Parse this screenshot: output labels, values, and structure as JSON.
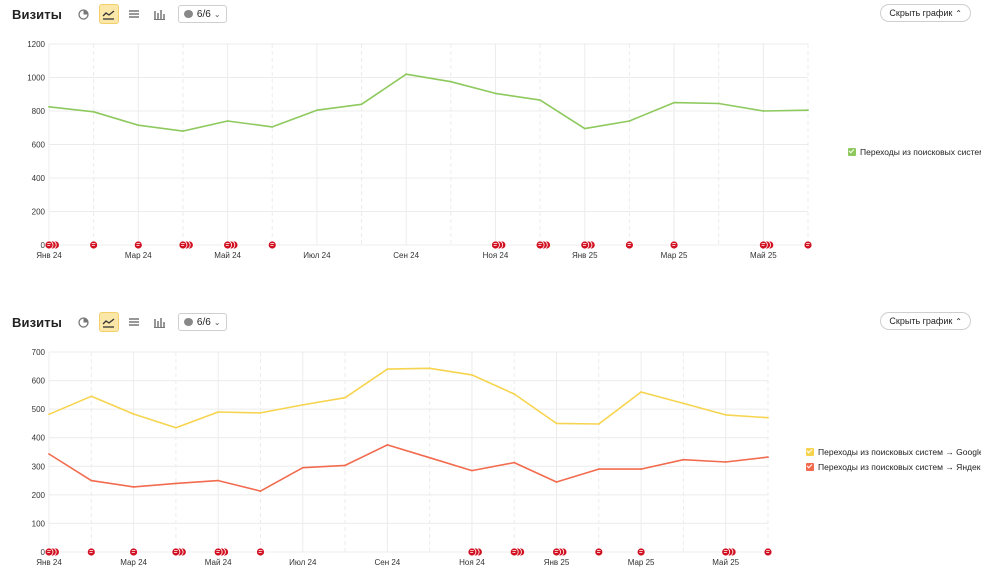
{
  "colors": {
    "green": "#8dc95d",
    "yellow": "#f7d44f",
    "orange": "#f26b4e",
    "marker": "#d11122",
    "grid": "#ececec",
    "active_button": "#fbe7a8"
  },
  "panels": [
    {
      "title": "Визиты",
      "annotations_label": "6/6",
      "hide_label": "Скрыть график",
      "chart_data": {
        "type": "line",
        "x": [
          "Янв 24",
          "Фев 24",
          "Мар 24",
          "Апр 24",
          "Май 24",
          "Июн 24",
          "Июл 24",
          "Авг 24",
          "Сен 24",
          "Окт 24",
          "Ноя 24",
          "Дек 24",
          "Янв 25",
          "Фев 25",
          "Мар 25",
          "Апр 25",
          "Май 25",
          "Июн 25"
        ],
        "xtick_labels": [
          "Янв 24",
          "Мар 24",
          "Май 24",
          "Июл 24",
          "Сен 24",
          "Ноя 24",
          "Янв 25",
          "Мар 25",
          "Май 25"
        ],
        "ylim": [
          0,
          1200
        ],
        "yticks": [
          0,
          200,
          400,
          600,
          800,
          1000,
          1200
        ],
        "grid": true,
        "legend_position": "right",
        "series": [
          {
            "name": "Переходы из поисковых систем",
            "color": "#8dc95d",
            "values": [
              825,
              795,
              715,
              680,
              740,
              705,
              805,
              840,
              1020,
              975,
              905,
              865,
              695,
              740,
              850,
              845,
              800,
              805
            ]
          }
        ],
        "annotations": [
          {
            "x": "Янв 24",
            "count": 3
          },
          {
            "x": "Фев 24",
            "count": 1
          },
          {
            "x": "Мар 24",
            "count": 1
          },
          {
            "x": "Апр 24",
            "count": 3
          },
          {
            "x": "Май 24",
            "count": 3
          },
          {
            "x": "Июн 24",
            "count": 1
          },
          {
            "x": "Ноя 24",
            "count": 3
          },
          {
            "x": "Дек 24",
            "count": 3
          },
          {
            "x": "Янв 25",
            "count": 3
          },
          {
            "x": "Фев 25",
            "count": 1
          },
          {
            "x": "Мар 25",
            "count": 1
          },
          {
            "x": "Май 25",
            "count": 3
          },
          {
            "x": "Июн 25",
            "count": 1
          }
        ]
      }
    },
    {
      "title": "Визиты",
      "annotations_label": "6/6",
      "hide_label": "Скрыть график",
      "chart_data": {
        "type": "line",
        "x": [
          "Янв 24",
          "Фев 24",
          "Мар 24",
          "Апр 24",
          "Май 24",
          "Июн 24",
          "Июл 24",
          "Авг 24",
          "Сен 24",
          "Окт 24",
          "Ноя 24",
          "Дек 24",
          "Янв 25",
          "Фев 25",
          "Мар 25",
          "Апр 25",
          "Май 25",
          "Июн 25"
        ],
        "xtick_labels": [
          "Янв 24",
          "Мар 24",
          "Май 24",
          "Июл 24",
          "Сен 24",
          "Ноя 24",
          "Янв 25",
          "Мар 25",
          "Май 25"
        ],
        "ylim": [
          0,
          700
        ],
        "yticks": [
          0,
          100,
          200,
          300,
          400,
          500,
          600,
          700
        ],
        "grid": true,
        "legend_position": "right",
        "series": [
          {
            "name": "Переходы из поисковых систем → Google",
            "color": "#f7d44f",
            "values": [
              482,
              545,
              483,
              435,
              490,
              487,
              515,
              540,
              640,
              643,
              620,
              553,
              450,
              448,
              560,
              520,
              480,
              470
            ]
          },
          {
            "name": "Переходы из поисковых систем → Яндекс",
            "color": "#f26b4e",
            "values": [
              343,
              250,
              228,
              240,
              250,
              213,
              295,
              303,
              375,
              330,
              285,
              313,
              245,
              290,
              290,
              323,
              315,
              332
            ]
          }
        ],
        "annotations": [
          {
            "x": "Янв 24",
            "count": 3
          },
          {
            "x": "Фев 24",
            "count": 1
          },
          {
            "x": "Мар 24",
            "count": 1
          },
          {
            "x": "Апр 24",
            "count": 3
          },
          {
            "x": "Май 24",
            "count": 3
          },
          {
            "x": "Июн 24",
            "count": 1
          },
          {
            "x": "Ноя 24",
            "count": 3
          },
          {
            "x": "Дек 24",
            "count": 3
          },
          {
            "x": "Янв 25",
            "count": 3
          },
          {
            "x": "Фев 25",
            "count": 1
          },
          {
            "x": "Мар 25",
            "count": 1
          },
          {
            "x": "Май 25",
            "count": 3
          },
          {
            "x": "Июн 25",
            "count": 1
          }
        ]
      }
    }
  ]
}
